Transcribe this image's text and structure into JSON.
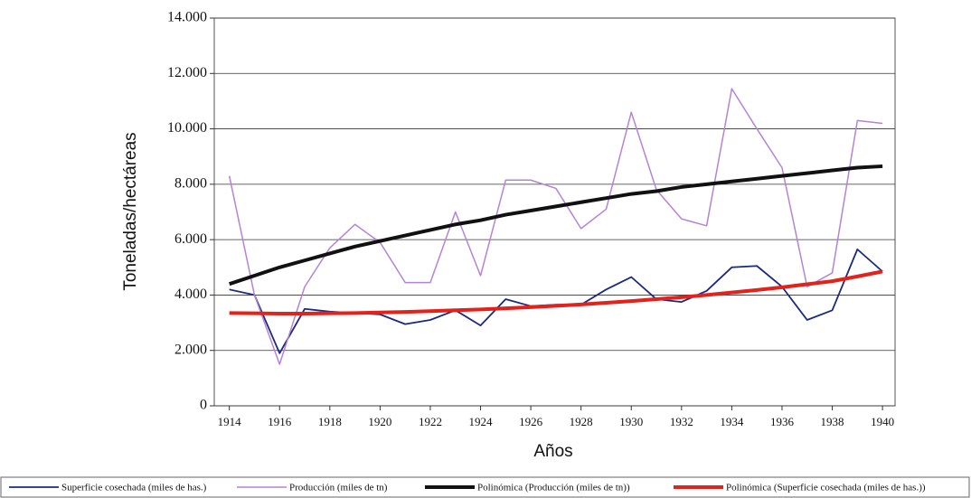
{
  "chart_data": {
    "type": "line",
    "x_label": "Años",
    "y_label": "Toneladas/hectáreas",
    "x": [
      1914,
      1915,
      1916,
      1917,
      1918,
      1919,
      1920,
      1921,
      1922,
      1923,
      1924,
      1925,
      1926,
      1927,
      1928,
      1929,
      1930,
      1931,
      1932,
      1933,
      1934,
      1935,
      1936,
      1937,
      1938,
      1939,
      1940
    ],
    "xlim": [
      1913.4,
      1940.5
    ],
    "xticks": [
      1914,
      1916,
      1918,
      1920,
      1922,
      1924,
      1926,
      1928,
      1930,
      1932,
      1934,
      1936,
      1938,
      1940
    ],
    "ylim": [
      0,
      14000
    ],
    "yticks": [
      0,
      {
        "value": 2000,
        "label": "2.000"
      },
      {
        "value": 4000,
        "label": "4.000"
      },
      {
        "value": 6000,
        "label": "6.000"
      },
      {
        "value": 8000,
        "label": "8.000"
      },
      {
        "value": 10000,
        "label": "10.000"
      },
      {
        "value": 12000,
        "label": "12.000"
      },
      {
        "value": 14000,
        "label": "14.000"
      }
    ],
    "grid": true,
    "legend": "bottom",
    "series": [
      {
        "name": "Superficie cosechada (miles de has.)",
        "color": "#1b2a80",
        "width": 1.8,
        "values": [
          4200,
          4000,
          1900,
          3500,
          3400,
          3350,
          3300,
          2950,
          3100,
          3450,
          2900,
          3850,
          3600,
          3650,
          3650,
          4200,
          4650,
          3850,
          3750,
          4150,
          5000,
          5050,
          4300,
          3100,
          3450,
          5650,
          4850
        ]
      },
      {
        "name": "Producción (miles de tn)",
        "color": "#b484d4",
        "width": 1.5,
        "values": [
          8300,
          4000,
          1500,
          4300,
          5700,
          6550,
          5900,
          4450,
          4450,
          7000,
          4700,
          8150,
          8150,
          7850,
          6400,
          7100,
          10600,
          7800,
          6750,
          6500,
          11450,
          10000,
          8600,
          4300,
          4800,
          10300,
          10200
        ]
      },
      {
        "name": "Polinómica (Producción (miles de tn))",
        "color": "#111111",
        "width": 4,
        "values": [
          4400,
          4700,
          5000,
          5250,
          5500,
          5750,
          5950,
          6150,
          6350,
          6550,
          6700,
          6900,
          7050,
          7200,
          7350,
          7500,
          7650,
          7750,
          7900,
          8000,
          8100,
          8200,
          8300,
          8400,
          8500,
          8600,
          8650
        ]
      },
      {
        "name": "Polinómica (Superficie cosechada (miles de has.))",
        "color": "#e3221b",
        "width": 4,
        "values": [
          3350,
          3340,
          3330,
          3330,
          3340,
          3350,
          3370,
          3390,
          3420,
          3450,
          3480,
          3520,
          3560,
          3610,
          3660,
          3720,
          3780,
          3850,
          3920,
          4000,
          4090,
          4180,
          4280,
          4390,
          4500,
          4670,
          4850
        ]
      }
    ]
  }
}
